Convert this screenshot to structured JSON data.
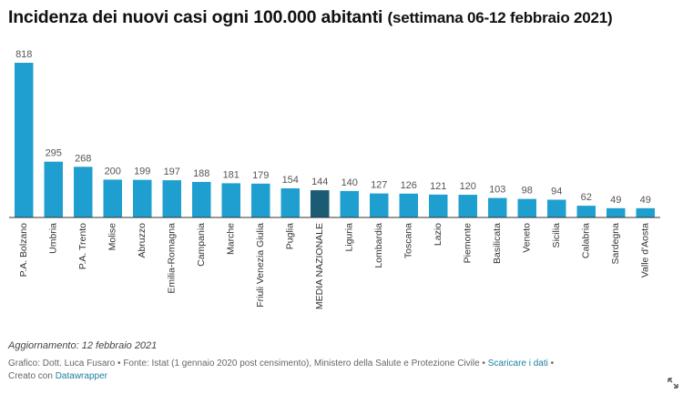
{
  "header": {
    "title": "Incidenza dei nuovi casi ogni 100.000 abitanti",
    "subtitle": "(settimana 06-12 febbraio 2021)"
  },
  "chart_data": {
    "type": "bar",
    "title": "Incidenza dei nuovi casi ogni 100.000 abitanti (settimana 06-12 febbraio 2021)",
    "xlabel": "",
    "ylabel": "",
    "ylim": [
      0,
      818
    ],
    "grid": false,
    "legend": "none",
    "bar_color": "#1f9fcf",
    "highlight_color": "#1b5b73",
    "highlight_category": "MEDIA NAZIONALE",
    "categories": [
      "P.A. Bolzano",
      "Umbria",
      "P.A. Trento",
      "Molise",
      "Abruzzo",
      "Emilia-Romagna",
      "Campania",
      "Marche",
      "Friuli Venezia Giulia",
      "Puglia",
      "MEDIA NAZIONALE",
      "Liguria",
      "Lombardia",
      "Toscana",
      "Lazio",
      "Piemonte",
      "Basilicata",
      "Veneto",
      "Sicilia",
      "Calabria",
      "Sardegna",
      "Valle d'Aosta"
    ],
    "values": [
      818,
      295,
      268,
      200,
      199,
      197,
      188,
      181,
      179,
      154,
      144,
      140,
      127,
      126,
      121,
      120,
      103,
      98,
      94,
      62,
      49,
      49
    ]
  },
  "footer": {
    "updated": "Aggiornamento: 12 febbraio 2021",
    "source_text": "Grafico: Dott. Luca Fusaro • Fonte: Istat (1 gennaio 2020 post censimento), Ministero della Salute e Protezione Civile •",
    "download_link": "Scaricare i dati",
    "bullet": "•",
    "created_with": "Creato con",
    "tool_link": "Datawrapper"
  },
  "icons": {
    "expand": "expand-icon"
  }
}
